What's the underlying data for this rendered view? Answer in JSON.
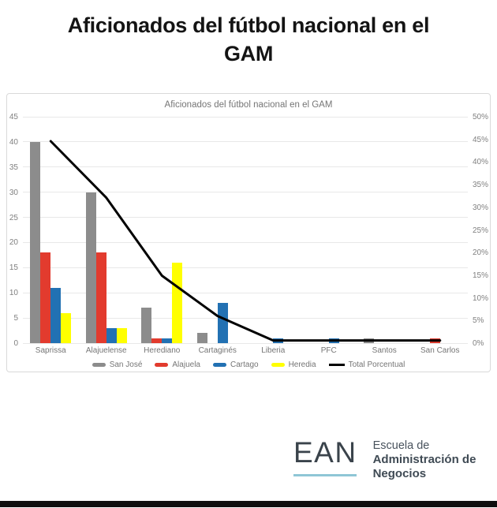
{
  "page": {
    "main_title": "Aficionados del fútbol nacional en el GAM"
  },
  "chart_data": {
    "type": "bar",
    "subtype": "grouped-bar-with-line-combo",
    "title": "Aficionados del fútbol nacional en el GAM",
    "categories": [
      "Saprissa",
      "Alajuelense",
      "Herediano",
      "Cartaginés",
      "Liberia",
      "PFC",
      "Santos",
      "San Carlos"
    ],
    "series": [
      {
        "name": "San José",
        "type": "bar",
        "color": "#8c8c8c",
        "axis": "left",
        "values": [
          40,
          30,
          7,
          2,
          0,
          0,
          1,
          0
        ]
      },
      {
        "name": "Alajuela",
        "type": "bar",
        "color": "#e23b2e",
        "axis": "left",
        "values": [
          18,
          18,
          1,
          0,
          0,
          0,
          0,
          1
        ]
      },
      {
        "name": "Cartago",
        "type": "bar",
        "color": "#2271b3",
        "axis": "left",
        "values": [
          11,
          3,
          1,
          8,
          1,
          1,
          0,
          0
        ]
      },
      {
        "name": "Heredia",
        "type": "bar",
        "color": "#ffff00",
        "axis": "left",
        "values": [
          6,
          3,
          16,
          0,
          0,
          0,
          0,
          0
        ]
      },
      {
        "name": "Total Porcentual",
        "type": "line",
        "color": "#000000",
        "axis": "right",
        "values_pct": [
          44.6,
          32.1,
          14.9,
          6.0,
          0.6,
          0.6,
          0.6,
          0.6
        ]
      }
    ],
    "left_axis": {
      "min": 0,
      "max": 45,
      "ticks": [
        0,
        5,
        10,
        15,
        20,
        25,
        30,
        35,
        40,
        45
      ]
    },
    "right_axis": {
      "min": 0,
      "max": 50,
      "tick_labels": [
        "0%",
        "5%",
        "10%",
        "15%",
        "20%",
        "25%",
        "30%",
        "35%",
        "40%",
        "45%",
        "50%"
      ]
    },
    "grid": true,
    "legend_position": "bottom",
    "gridline_color": "#e8e8e8"
  },
  "logo": {
    "ean": "EAN",
    "line1": "Escuela de",
    "line2": "Administración de",
    "line3": "Negocios"
  }
}
